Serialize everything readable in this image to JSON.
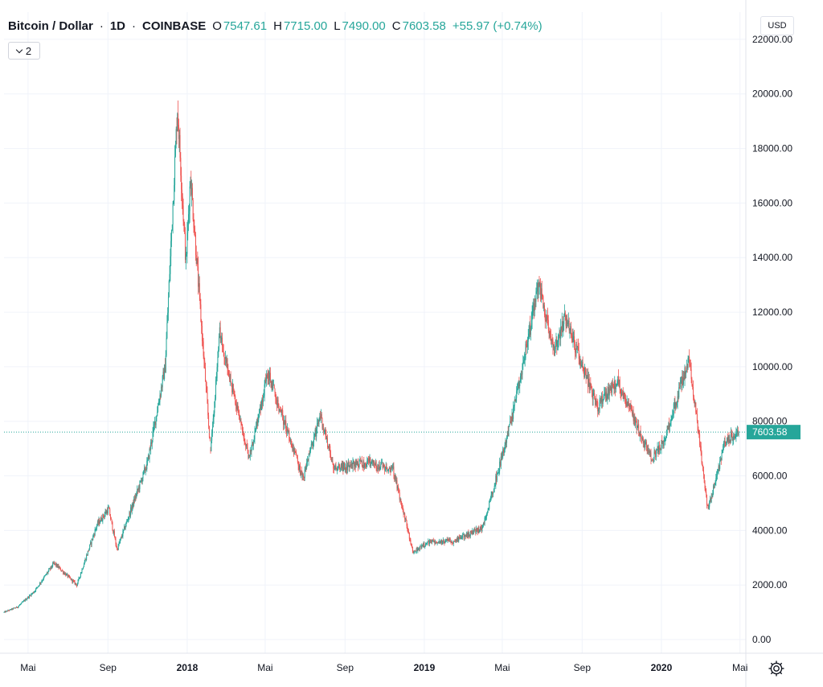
{
  "legend": {
    "symbol": "Bitcoin / Dollar",
    "sep1": "·",
    "interval": "1D",
    "sep2": "·",
    "exchange": "COINBASE",
    "o_label": "O",
    "o_value": "7547.61",
    "h_label": "H",
    "h_value": "7715.00",
    "l_label": "L",
    "l_value": "7490.00",
    "c_label": "C",
    "c_value": "7603.58",
    "change": "+55.97 (+0.74%)",
    "indicator_count": "2"
  },
  "price_scale": {
    "currency": "USD"
  },
  "icons": {
    "settings": "gear-icon",
    "collapse": "chevron-down-icon"
  },
  "colors": {
    "up": "#26a69a",
    "down": "#ef5350",
    "grid": "#f0f3fa",
    "axis_text": "#131722",
    "last_price": "#26a69a"
  },
  "chart_data": {
    "type": "candlestick",
    "ylim": [
      -500,
      23000
    ],
    "y_ticks": [
      "22000.00",
      "20000.00",
      "18000.00",
      "16000.00",
      "14000.00",
      "12000.00",
      "10000.00",
      "8000.00",
      "6000.00",
      "4000.00",
      "2000.00",
      "0.00"
    ],
    "x_ticks": [
      {
        "label": "Mai",
        "date": "2017-05-01",
        "bold": false
      },
      {
        "label": "Sep",
        "date": "2017-09-01",
        "bold": false
      },
      {
        "label": "2018",
        "date": "2018-01-01",
        "bold": true
      },
      {
        "label": "Mai",
        "date": "2018-05-01",
        "bold": false
      },
      {
        "label": "Sep",
        "date": "2018-09-01",
        "bold": false
      },
      {
        "label": "2019",
        "date": "2019-01-01",
        "bold": true
      },
      {
        "label": "Mai",
        "date": "2019-05-01",
        "bold": false
      },
      {
        "label": "Sep",
        "date": "2019-09-01",
        "bold": false
      },
      {
        "label": "2020",
        "date": "2020-01-01",
        "bold": true
      },
      {
        "label": "Mai",
        "date": "2020-05-01",
        "bold": false
      }
    ],
    "xlim": [
      "2017-03-25",
      "2020-05-10"
    ],
    "last_price": 7603.58,
    "last_price_label": "7603.58",
    "price_path": [
      [
        "2017-03-25",
        1000
      ],
      [
        "2017-04-15",
        1200
      ],
      [
        "2017-05-10",
        1750
      ],
      [
        "2017-06-10",
        2800
      ],
      [
        "2017-07-15",
        2000
      ],
      [
        "2017-08-15",
        4200
      ],
      [
        "2017-09-02",
        4800
      ],
      [
        "2017-09-15",
        3300
      ],
      [
        "2017-10-10",
        5000
      ],
      [
        "2017-11-01",
        6500
      ],
      [
        "2017-11-28",
        10000
      ],
      [
        "2017-12-17",
        19500
      ],
      [
        "2017-12-30",
        13800
      ],
      [
        "2018-01-06",
        17000
      ],
      [
        "2018-02-06",
        6900
      ],
      [
        "2018-02-20",
        11200
      ],
      [
        "2018-04-06",
        6600
      ],
      [
        "2018-05-05",
        9800
      ],
      [
        "2018-06-28",
        5900
      ],
      [
        "2018-07-25",
        8200
      ],
      [
        "2018-08-15",
        6300
      ],
      [
        "2018-10-10",
        6500
      ],
      [
        "2018-11-14",
        6200
      ],
      [
        "2018-12-15",
        3200
      ],
      [
        "2019-01-10",
        3600
      ],
      [
        "2019-02-15",
        3600
      ],
      [
        "2019-04-01",
        4100
      ],
      [
        "2019-05-15",
        8000
      ],
      [
        "2019-06-26",
        13000
      ],
      [
        "2019-07-20",
        10500
      ],
      [
        "2019-08-06",
        11800
      ],
      [
        "2019-09-24",
        8500
      ],
      [
        "2019-10-25",
        9500
      ],
      [
        "2019-12-17",
        6600
      ],
      [
        "2020-01-05",
        7300
      ],
      [
        "2020-02-13",
        10300
      ],
      [
        "2020-03-12",
        4800
      ],
      [
        "2020-03-18",
        5200
      ],
      [
        "2020-04-08",
        7300
      ],
      [
        "2020-04-29",
        7603.58
      ]
    ]
  }
}
